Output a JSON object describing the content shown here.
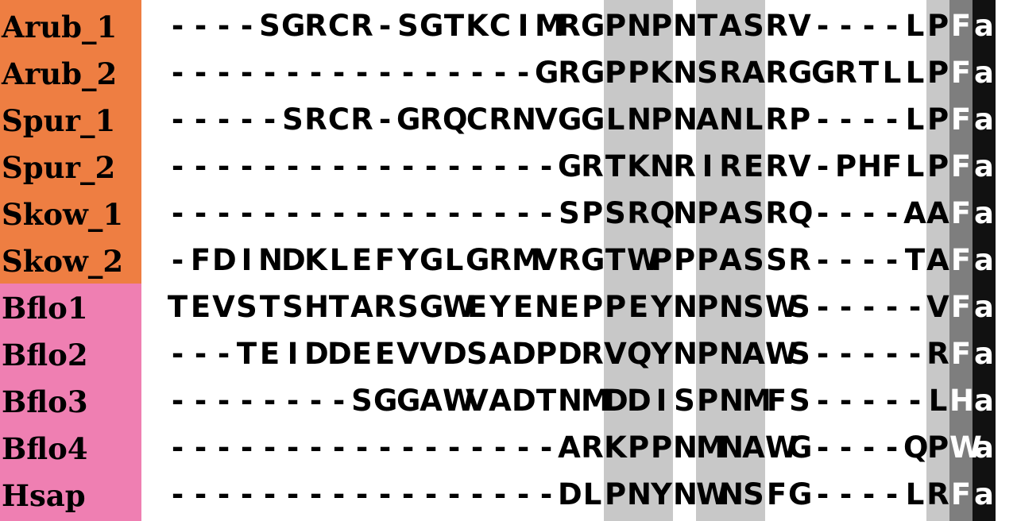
{
  "colors": {
    "urochordate_label_bg": "#ee7e42",
    "vertebrate_label_bg": "#ef7fb2",
    "light_shade": "#c8c8c8",
    "mid_shade": "#7e7e7e",
    "dark_shade": "#111111"
  },
  "alignment": {
    "rows": [
      {
        "label": "Arub_1",
        "group": "orange",
        "sequence": "----SGRCR-SGTKCIMRGPNPNTASRV----LPFa"
      },
      {
        "label": "Arub_2",
        "group": "orange",
        "sequence": "----------------GRGPPKNSRARGGRTLLPFa"
      },
      {
        "label": "Spur_1",
        "group": "orange",
        "sequence": "-----SRCR-GRQCRNVGGLNPNANLRP----LPFa"
      },
      {
        "label": "Spur_2",
        "group": "orange",
        "sequence": "-----------------GRTKNRIRERV-PHFLPFa"
      },
      {
        "label": "Skow_1",
        "group": "orange",
        "sequence": "-----------------SPSRQNPASRQ----AAFa"
      },
      {
        "label": "Skow_2",
        "group": "orange",
        "sequence": "-FDINDKLEFYGLGRMVRGTWPPPASSR----TAFa"
      },
      {
        "label": "Bflo1",
        "group": "pink",
        "sequence": "TEVSTSHTARSGWEYENEPPEYNPNSWS-----VFa"
      },
      {
        "label": "Bflo2",
        "group": "pink",
        "sequence": "---TEIDDEEVVDSADPDRVQYNPNAWS-----RFa"
      },
      {
        "label": "Bflo3",
        "group": "pink",
        "sequence": "--------SGGAWVADTNMDDISPNMFS-----LHa"
      },
      {
        "label": "Bflo4",
        "group": "pink",
        "sequence": "-----------------ARKPPNMNAWG----QPWa"
      },
      {
        "label": "Hsap",
        "group": "pink",
        "sequence": "-----------------DLPNYNWNSFG----LRFa"
      }
    ]
  }
}
